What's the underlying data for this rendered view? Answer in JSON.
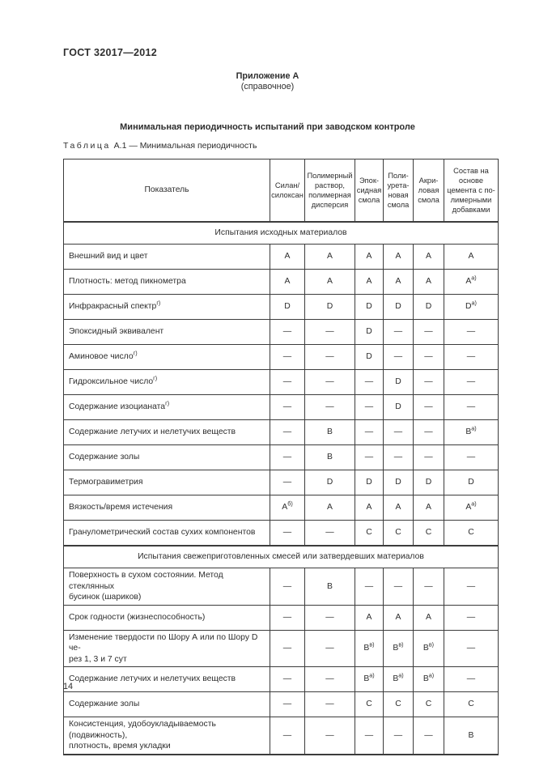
{
  "doc": {
    "number": "ГОСТ 32017—2012",
    "appendix_label": "Приложение А",
    "appendix_kind": "(справочное)",
    "title": "Минимальная периодичность испытаний при заводском контроле",
    "table_caption_word": "Таблица",
    "table_caption_rest": "А.1 — Минимальная периодичность",
    "page_number": "14"
  },
  "colors": {
    "background": "#ffffff",
    "text": "#2e2e2e",
    "border": "#3c3c3c"
  },
  "table": {
    "header": {
      "indicator": "Показатель",
      "columns": [
        "Силан/\nсилоксан",
        "Полимерный\nраствор,\nполимерная\nдисперсия",
        "Эпок-\nсидная\nсмола",
        "Поли-\nурета-\nновая\nсмола",
        "Акри-\nловая\nсмола",
        "Состав на\nоснове\nцемента с по-\nлимерными\nдобавками"
      ]
    },
    "sections": [
      {
        "title": "Испытания исходных материалов",
        "rows": [
          {
            "label": "Внешний вид и цвет",
            "values": [
              "A",
              "A",
              "A",
              "A",
              "A",
              "A"
            ]
          },
          {
            "label": "Плотность: метод пикнометра",
            "values": [
              "A",
              "A",
              "A",
              "A",
              "A",
              "A^а)"
            ]
          },
          {
            "label": "Инфракрасный спектр^г)",
            "values": [
              "D",
              "D",
              "D",
              "D",
              "D",
              "D^а)"
            ]
          },
          {
            "label": "Эпоксидный эквивалент",
            "values": [
              "—",
              "—",
              "D",
              "—",
              "—",
              "—"
            ]
          },
          {
            "label": "Аминовое число^г)",
            "values": [
              "—",
              "—",
              "D",
              "—",
              "—",
              "—"
            ]
          },
          {
            "label": "Гидроксильное число^г)",
            "values": [
              "—",
              "—",
              "—",
              "D",
              "—",
              "—"
            ]
          },
          {
            "label": "Содержание изоцианата^г)",
            "values": [
              "—",
              "—",
              "—",
              "D",
              "—",
              "—"
            ]
          },
          {
            "label": "Содержание летучих и нелетучих веществ",
            "values": [
              "—",
              "B",
              "—",
              "—",
              "—",
              "B^а)"
            ]
          },
          {
            "label": "Содержание золы",
            "values": [
              "—",
              "B",
              "—",
              "—",
              "—",
              "—"
            ]
          },
          {
            "label": "Термогравиметрия",
            "values": [
              "—",
              "D",
              "D",
              "D",
              "D",
              "D"
            ]
          },
          {
            "label": "Вязкость/время истечения",
            "values": [
              "A^б)",
              "A",
              "A",
              "A",
              "A",
              "A^а)"
            ]
          },
          {
            "label": "Гранулометрический состав сухих компонентов",
            "values": [
              "—",
              "—",
              "C",
              "C",
              "C",
              "C"
            ]
          }
        ]
      },
      {
        "title": "Испытания свежеприготовленных смесей или затвердевших материалов",
        "rows": [
          {
            "label": "Поверхность в сухом состоянии. Метод стеклянных\nбусинок (шариков)",
            "values": [
              "—",
              "B",
              "—",
              "—",
              "—",
              "—"
            ]
          },
          {
            "label": "Срок годности (жизнеспособность)",
            "values": [
              "—",
              "—",
              "A",
              "A",
              "A",
              "—"
            ]
          },
          {
            "label": "Изменение твердости по Шору А или по Шору D че-\nрез 1, 3 и 7 сут",
            "values": [
              "—",
              "—",
              "B^в)",
              "B^в)",
              "B^в)",
              "—"
            ]
          },
          {
            "label": "Содержание летучих и нелетучих веществ",
            "values": [
              "—",
              "—",
              "B^а)",
              "B^а)",
              "B^а)",
              "—"
            ]
          },
          {
            "label": "Содержание золы",
            "values": [
              "—",
              "—",
              "C",
              "C",
              "C",
              "C"
            ]
          },
          {
            "label": "Консистенция, удобоукладываемость (подвижность),\nплотность, время укладки",
            "values": [
              "—",
              "—",
              "—",
              "—",
              "—",
              "B"
            ]
          }
        ]
      }
    ]
  }
}
